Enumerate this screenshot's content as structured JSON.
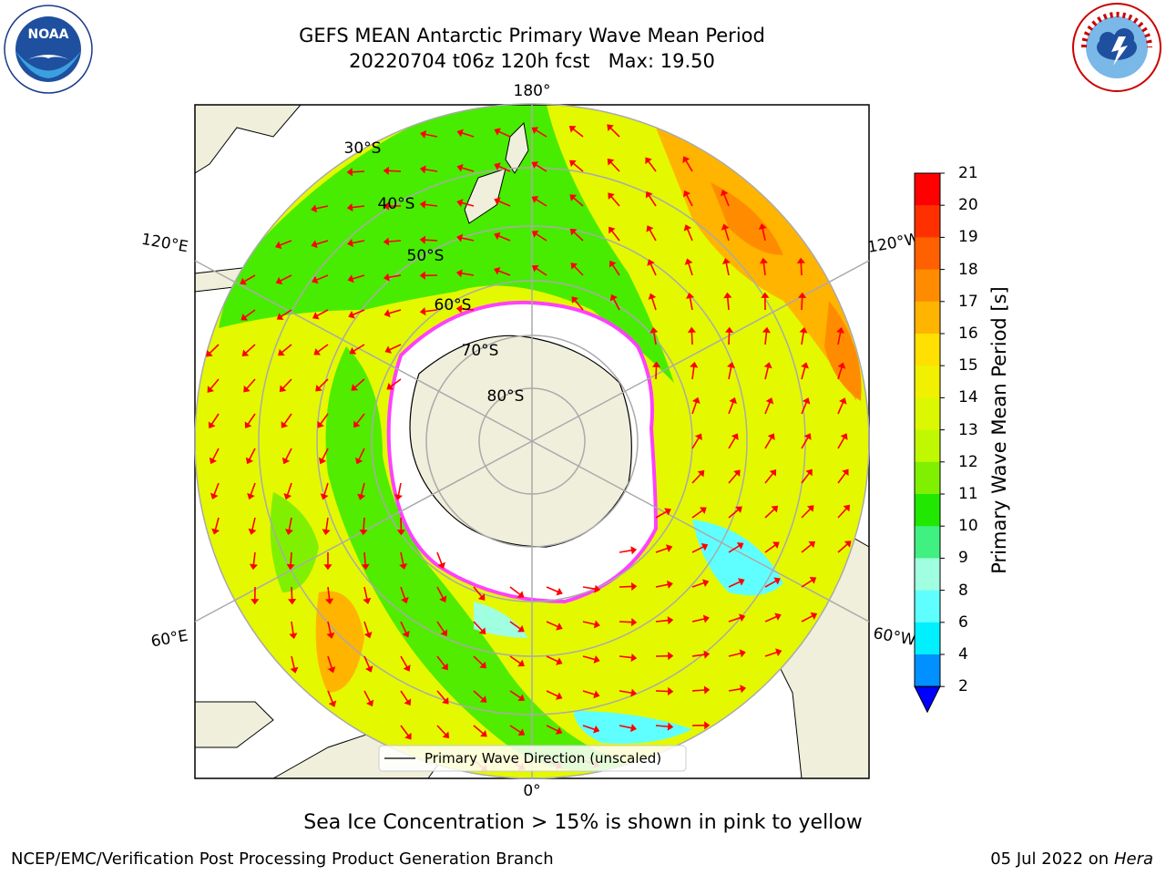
{
  "header": {
    "title_line1": "GEFS MEAN Antarctic Primary Wave Mean Period",
    "title_line2": "20220704 t06z 120h fcst   Max: 19.50"
  },
  "logos": {
    "left": {
      "ring_text": "NATIONAL OCEANIC AND ATMOSPHERIC ADMINISTRATION",
      "bottom_text": "U.S. DEPARTMENT OF COMMERCE",
      "center_text": "NOAA"
    },
    "right": {
      "ring_text": "NATIONAL WEATHER SERVICE"
    }
  },
  "map": {
    "longitude_labels": [
      "180°",
      "120°E",
      "120°W",
      "60°E",
      "60°W",
      "0°"
    ],
    "latitude_labels": [
      "30°S",
      "40°S",
      "50°S",
      "60°S",
      "70°S",
      "80°S"
    ],
    "legend_label": "Primary Wave Direction (unscaled)"
  },
  "colorbar": {
    "title": "Primary Wave Mean Period [s]",
    "ticks": [
      "21",
      "20",
      "19",
      "18",
      "17",
      "16",
      "15",
      "14",
      "13",
      "12",
      "11",
      "10",
      "9",
      "8",
      "6",
      "4",
      "2"
    ],
    "colors": [
      "#ff0000",
      "#ff3000",
      "#ff6000",
      "#ff8c00",
      "#ffb400",
      "#ffe000",
      "#f0f000",
      "#dcf800",
      "#c0f800",
      "#80f000",
      "#20e800",
      "#40f080",
      "#a0ffe0",
      "#60ffff",
      "#00f0ff",
      "#0090ff"
    ],
    "extend_color": "#0000ff"
  },
  "notes": {
    "sea_ice": "Sea Ice Concentration > 15% is shown in pink to yellow"
  },
  "footer": {
    "left": "NCEP/EMC/Verification Post Processing Product Generation Branch",
    "right_prefix": "05 Jul 2022 on ",
    "right_system": "Hera"
  }
}
